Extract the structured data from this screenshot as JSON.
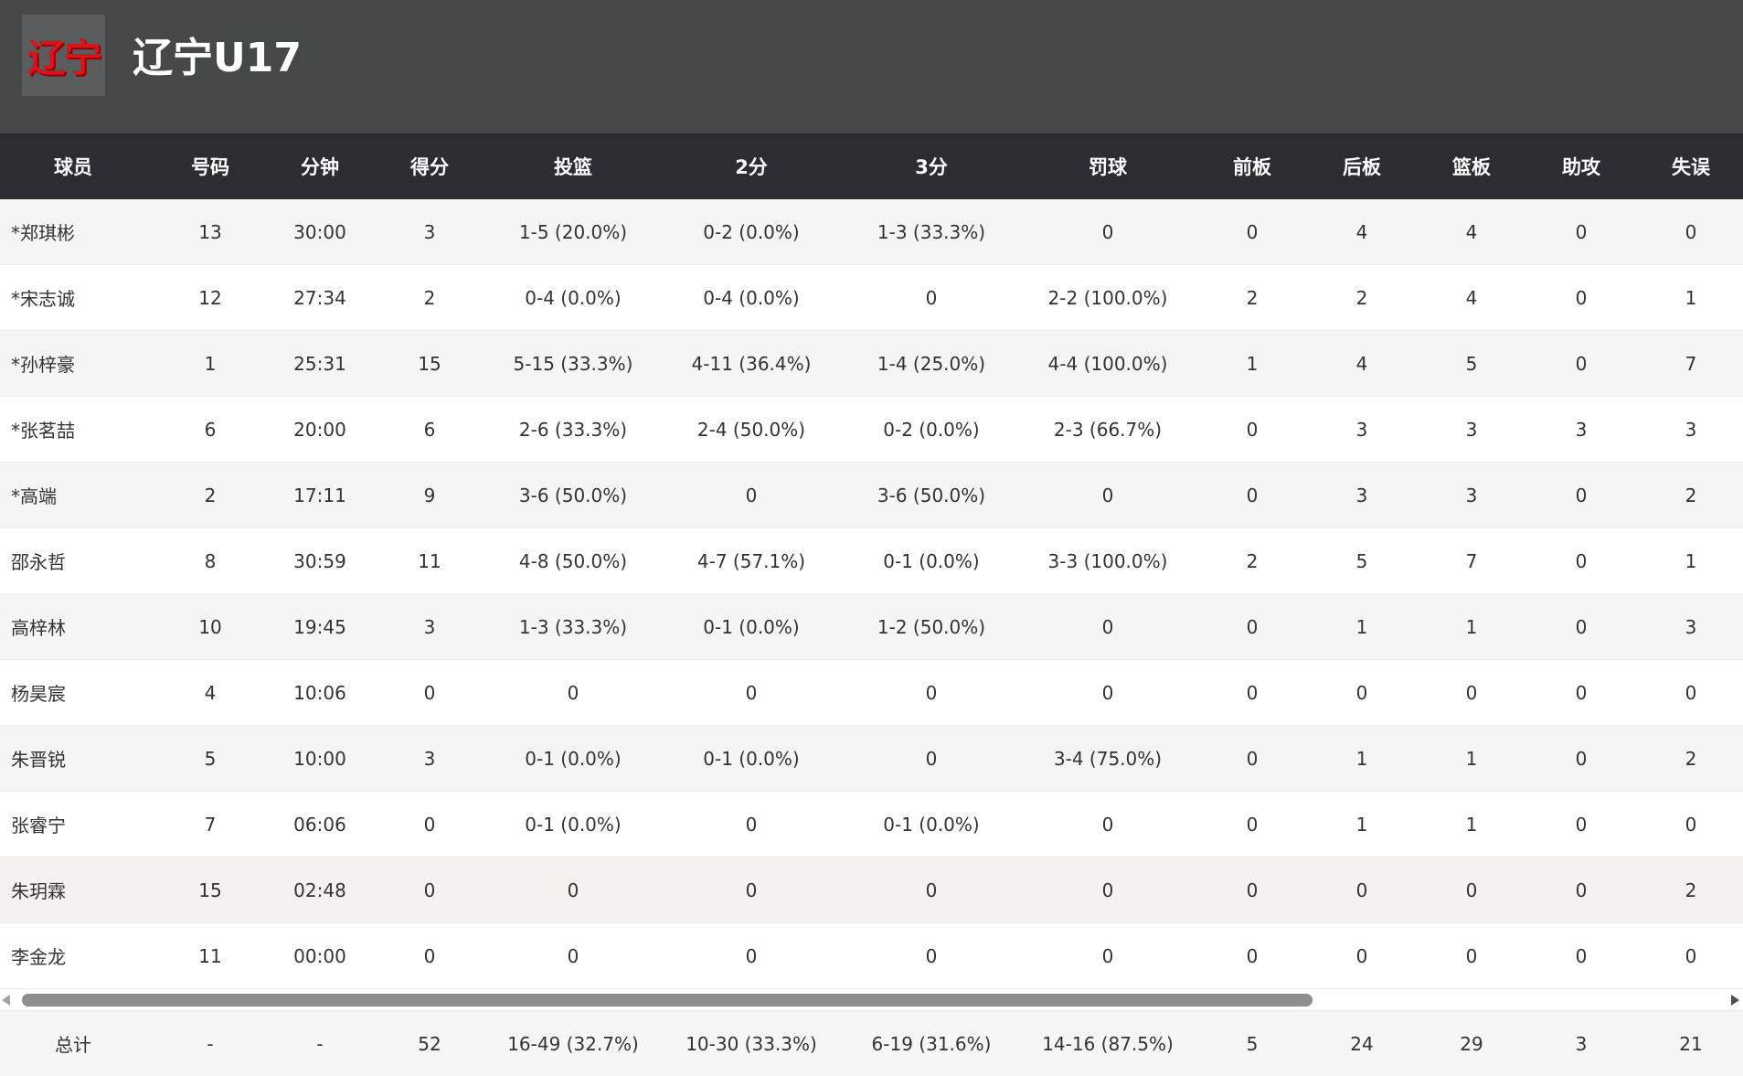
{
  "team": {
    "logo_text": "辽宁",
    "name": "辽宁U17"
  },
  "columns": [
    "球员",
    "号码",
    "分钟",
    "得分",
    "投篮",
    "2分",
    "3分",
    "罚球",
    "前板",
    "后板",
    "篮板",
    "助攻",
    "失误"
  ],
  "players": [
    [
      "*郑琪彬",
      "13",
      "30:00",
      "3",
      "1-5 (20.0%)",
      "0-2 (0.0%)",
      "1-3 (33.3%)",
      "0",
      "0",
      "4",
      "4",
      "0",
      "0"
    ],
    [
      "*宋志诚",
      "12",
      "27:34",
      "2",
      "0-4 (0.0%)",
      "0-4 (0.0%)",
      "0",
      "2-2 (100.0%)",
      "2",
      "2",
      "4",
      "0",
      "1"
    ],
    [
      "*孙梓豪",
      "1",
      "25:31",
      "15",
      "5-15 (33.3%)",
      "4-11 (36.4%)",
      "1-4 (25.0%)",
      "4-4 (100.0%)",
      "1",
      "4",
      "5",
      "0",
      "7"
    ],
    [
      "*张茗喆",
      "6",
      "20:00",
      "6",
      "2-6 (33.3%)",
      "2-4 (50.0%)",
      "0-2 (0.0%)",
      "2-3 (66.7%)",
      "0",
      "3",
      "3",
      "3",
      "3"
    ],
    [
      " *高端",
      "2",
      "17:11",
      "9",
      "3-6 (50.0%)",
      "0",
      "3-6 (50.0%)",
      "0",
      "0",
      "3",
      "3",
      "0",
      "2"
    ],
    [
      "邵永哲",
      "8",
      "30:59",
      "11",
      "4-8 (50.0%)",
      "4-7 (57.1%)",
      "0-1 (0.0%)",
      "3-3 (100.0%)",
      "2",
      "5",
      "7",
      "0",
      "1"
    ],
    [
      "高梓林",
      "10",
      "19:45",
      "3",
      "1-3 (33.3%)",
      "0-1 (0.0%)",
      "1-2 (50.0%)",
      "0",
      "0",
      "1",
      "1",
      "0",
      "3"
    ],
    [
      "杨昊宸",
      "4",
      "10:06",
      "0",
      "0",
      "0",
      "0",
      "0",
      "0",
      "0",
      "0",
      "0",
      "0"
    ],
    [
      "朱晋锐",
      "5",
      "10:00",
      "3",
      "0-1 (0.0%)",
      "0-1 (0.0%)",
      "0",
      "3-4 (75.0%)",
      "0",
      "1",
      "1",
      "0",
      "2"
    ],
    [
      "张睿宁",
      "7",
      "06:06",
      "0",
      "0-1 (0.0%)",
      "0",
      "0-1 (0.0%)",
      "0",
      "0",
      "1",
      "1",
      "0",
      "0"
    ],
    [
      "朱玥霖",
      "15",
      "02:48",
      "0",
      "0",
      "0",
      "0",
      "0",
      "0",
      "0",
      "0",
      "0",
      "2"
    ],
    [
      "李金龙",
      "11",
      "00:00",
      "0",
      "0",
      "0",
      "0",
      "0",
      "0",
      "0",
      "0",
      "0",
      "0"
    ]
  ],
  "totals": [
    "总计",
    "-",
    "-",
    "52",
    "16-49 (32.7%)",
    "10-30 (33.3%)",
    "6-19 (31.6%)",
    "14-16 (87.5%)",
    "5",
    "24",
    "29",
    "3",
    "21"
  ],
  "colors": {
    "header_bg": "#454849",
    "table_header_bg": "#2a2e33",
    "logo_red": "#d9141b"
  }
}
